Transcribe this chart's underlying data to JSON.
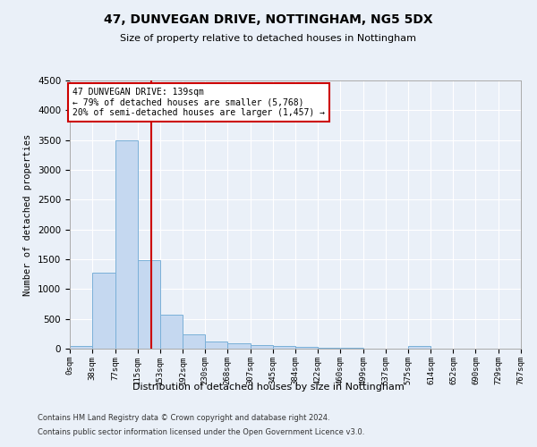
{
  "title": "47, DUNVEGAN DRIVE, NOTTINGHAM, NG5 5DX",
  "subtitle": "Size of property relative to detached houses in Nottingham",
  "xlabel": "Distribution of detached houses by size in Nottingham",
  "ylabel": "Number of detached properties",
  "bar_color": "#c5d8f0",
  "bar_edge_color": "#7ab0d8",
  "vline_color": "#cc0000",
  "vline_x": 139,
  "annotation_text": "47 DUNVEGAN DRIVE: 139sqm\n← 79% of detached houses are smaller (5,768)\n20% of semi-detached houses are larger (1,457) →",
  "annotation_box_color": "#ffffff",
  "annotation_box_edge": "#cc0000",
  "bin_edges": [
    0,
    38,
    77,
    115,
    153,
    192,
    230,
    268,
    307,
    345,
    384,
    422,
    460,
    499,
    537,
    575,
    614,
    652,
    690,
    729,
    767
  ],
  "bar_heights": [
    50,
    1270,
    3500,
    1480,
    575,
    240,
    115,
    85,
    55,
    40,
    30,
    20,
    15,
    0,
    0,
    50,
    0,
    0,
    0,
    0
  ],
  "ylim": [
    0,
    4500
  ],
  "yticks": [
    0,
    500,
    1000,
    1500,
    2000,
    2500,
    3000,
    3500,
    4000,
    4500
  ],
  "xlim": [
    0,
    767
  ],
  "background_color": "#eaf0f8",
  "grid_color": "#ffffff",
  "fig_bg_color": "#eaf0f8",
  "footer_line1": "Contains HM Land Registry data © Crown copyright and database right 2024.",
  "footer_line2": "Contains public sector information licensed under the Open Government Licence v3.0."
}
